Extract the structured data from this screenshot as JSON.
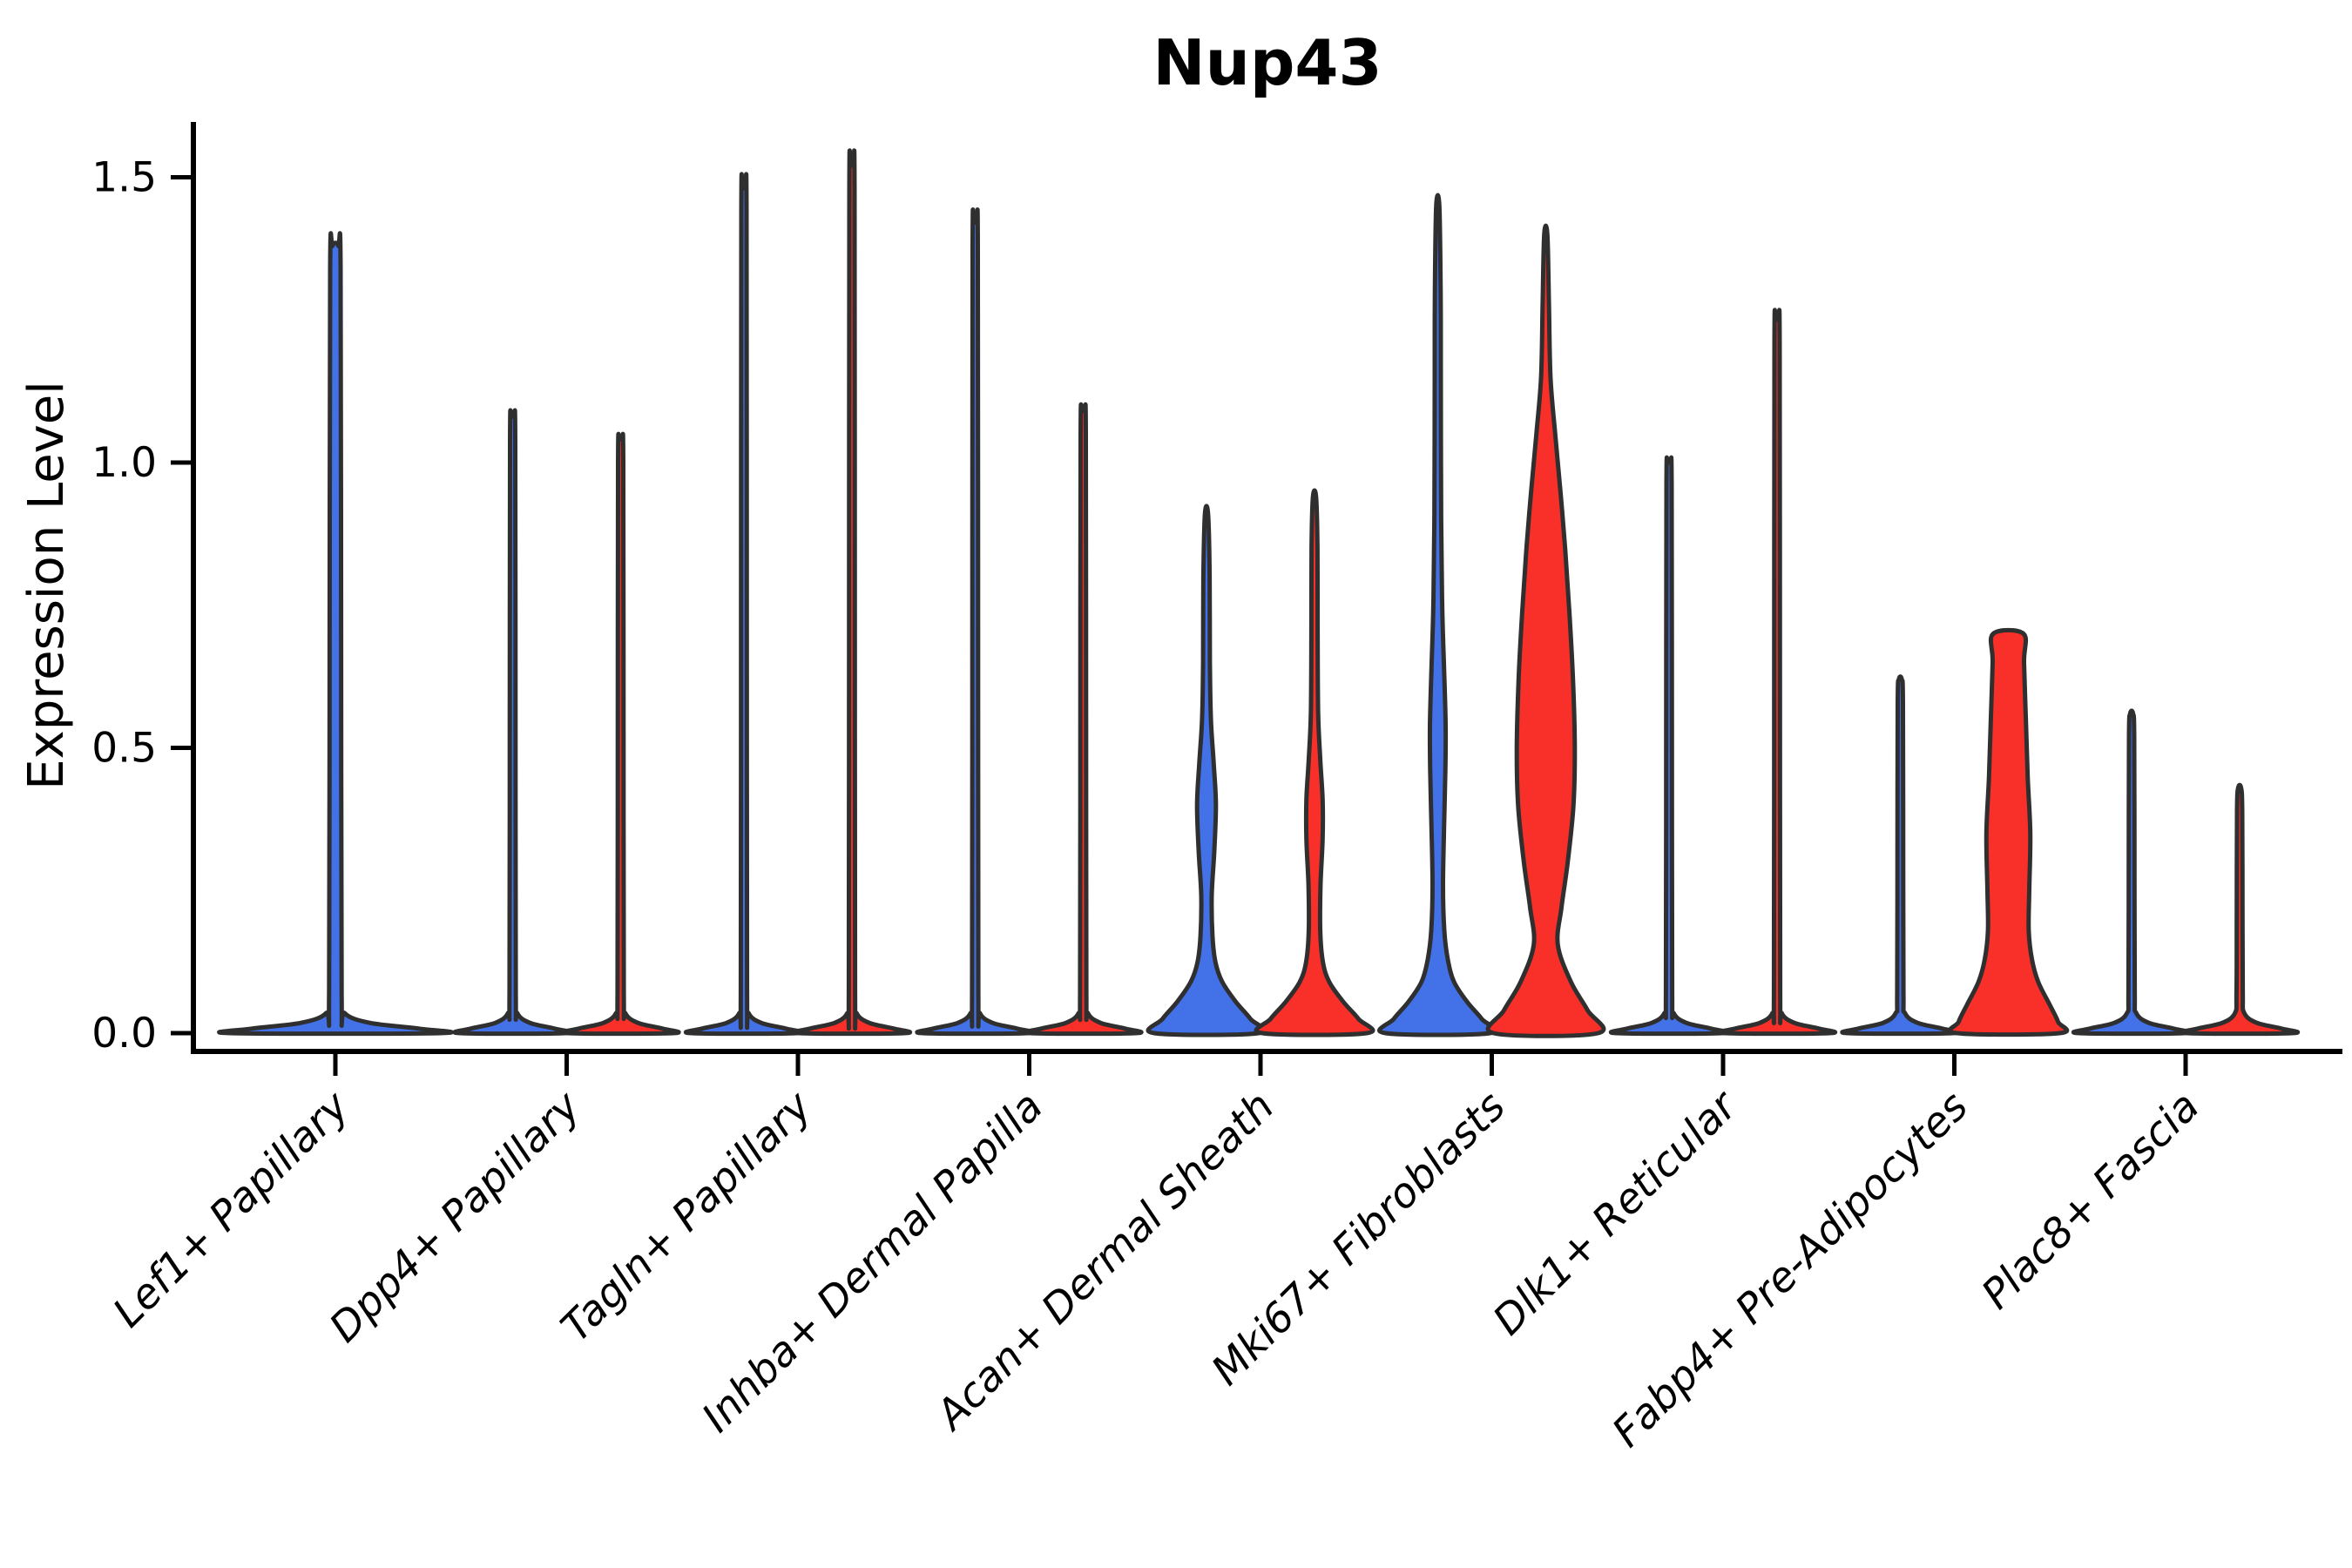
{
  "chart_data": {
    "type": "violin",
    "title": "Nup43",
    "ylabel": "Expression Level",
    "legend": "none",
    "ylim": [
      0,
      1.6
    ],
    "yticks": [
      {
        "label": "0.0",
        "value": 0.0
      },
      {
        "label": "0.5",
        "value": 0.5
      },
      {
        "label": "1.0",
        "value": 1.0
      },
      {
        "label": "1.5",
        "value": 1.5
      }
    ],
    "colors": {
      "blue": "#4372e8",
      "red": "#f93029",
      "outline": "#2f2f2f",
      "axis": "#000000"
    },
    "categories": [
      {
        "label": "Lef1+ Papillary",
        "violins": [
          {
            "side": "center",
            "color": "blue",
            "shape": "spike",
            "max": 1.38
          }
        ]
      },
      {
        "label": "Dpp4+ Papillary",
        "violins": [
          {
            "side": "left",
            "color": "blue",
            "shape": "spike",
            "max": 1.08
          },
          {
            "side": "right",
            "color": "red",
            "shape": "spike",
            "max": 1.04
          }
        ]
      },
      {
        "label": "Tagln+ Papillary",
        "violins": [
          {
            "side": "left",
            "color": "blue",
            "shape": "spike",
            "max": 1.48
          },
          {
            "side": "right",
            "color": "red",
            "shape": "spike",
            "max": 1.52
          }
        ]
      },
      {
        "label": "Inhba+ Dermal Papilla",
        "violins": [
          {
            "side": "left",
            "color": "blue",
            "shape": "spike",
            "max": 1.42
          },
          {
            "side": "right",
            "color": "red",
            "shape": "spike",
            "max": 1.09
          }
        ]
      },
      {
        "label": "Acan+ Dermal Sheath",
        "violins": [
          {
            "side": "left",
            "color": "blue",
            "shape": "custom",
            "max": 0.91,
            "profile": [
              [
                0,
                1
              ],
              [
                0.025,
                0.84
              ],
              [
                0.055,
                0.56
              ],
              [
                0.09,
                0.3
              ],
              [
                0.125,
                0.17
              ],
              [
                0.17,
                0.115
              ],
              [
                0.24,
                0.1
              ],
              [
                0.32,
                0.15
              ],
              [
                0.4,
                0.18
              ],
              [
                0.47,
                0.14
              ],
              [
                0.55,
                0.085
              ],
              [
                0.65,
                0.065
              ],
              [
                0.8,
                0.06
              ],
              [
                0.91,
                0.03
              ]
            ]
          },
          {
            "side": "right",
            "color": "red",
            "shape": "custom",
            "max": 0.94,
            "profile": [
              [
                0,
                1
              ],
              [
                0.025,
                0.84
              ],
              [
                0.055,
                0.55
              ],
              [
                0.09,
                0.28
              ],
              [
                0.125,
                0.16
              ],
              [
                0.18,
                0.11
              ],
              [
                0.26,
                0.115
              ],
              [
                0.34,
                0.155
              ],
              [
                0.41,
                0.155
              ],
              [
                0.48,
                0.11
              ],
              [
                0.56,
                0.07
              ],
              [
                0.7,
                0.06
              ],
              [
                0.85,
                0.057
              ],
              [
                0.94,
                0.03
              ]
            ]
          }
        ]
      },
      {
        "label": "Mki67+ Fibroblasts",
        "violins": [
          {
            "side": "left",
            "color": "blue",
            "shape": "custom",
            "max": 1.45,
            "profile": [
              [
                0,
                1
              ],
              [
                0.025,
                0.84
              ],
              [
                0.055,
                0.56
              ],
              [
                0.09,
                0.31
              ],
              [
                0.13,
                0.19
              ],
              [
                0.18,
                0.125
              ],
              [
                0.26,
                0.1
              ],
              [
                0.36,
                0.12
              ],
              [
                0.46,
                0.145
              ],
              [
                0.54,
                0.15
              ],
              [
                0.64,
                0.12
              ],
              [
                0.75,
                0.085
              ],
              [
                0.9,
                0.065
              ],
              [
                1.15,
                0.058
              ],
              [
                1.3,
                0.055
              ],
              [
                1.45,
                0.03
              ]
            ]
          },
          {
            "side": "right",
            "color": "red",
            "shape": "custom",
            "max": 1.4,
            "profile": [
              [
                0,
                1
              ],
              [
                0.04,
                0.8
              ],
              [
                0.09,
                0.48
              ],
              [
                0.155,
                0.23
              ],
              [
                0.22,
                0.3
              ],
              [
                0.3,
                0.42
              ],
              [
                0.4,
                0.53
              ],
              [
                0.5,
                0.555
              ],
              [
                0.62,
                0.52
              ],
              [
                0.74,
                0.45
              ],
              [
                0.85,
                0.37
              ],
              [
                0.95,
                0.28
              ],
              [
                1.05,
                0.18
              ],
              [
                1.15,
                0.09
              ],
              [
                1.28,
                0.06
              ],
              [
                1.4,
                0.03
              ]
            ]
          }
        ]
      },
      {
        "label": "Dlk1+ Reticular",
        "violins": [
          {
            "side": "left",
            "color": "blue",
            "shape": "spike",
            "max": 1.0
          },
          {
            "side": "right",
            "color": "red",
            "shape": "spike",
            "max": 1.25
          }
        ]
      },
      {
        "label": "Fabp4+ Pre-Adipocytes",
        "violins": [
          {
            "side": "left",
            "color": "blue",
            "shape": "spike",
            "max": 0.62
          },
          {
            "side": "right",
            "color": "red",
            "shape": "custom",
            "max": 0.7,
            "flat_top": true,
            "profile": [
              [
                0,
                0.98
              ],
              [
                0.02,
                0.95
              ],
              [
                0.05,
                0.79
              ],
              [
                0.09,
                0.57
              ],
              [
                0.13,
                0.45
              ],
              [
                0.18,
                0.39
              ],
              [
                0.25,
                0.4
              ],
              [
                0.35,
                0.42
              ],
              [
                0.45,
                0.37
              ],
              [
                0.55,
                0.335
              ],
              [
                0.65,
                0.3
              ],
              [
                0.7,
                0.29
              ]
            ]
          }
        ]
      },
      {
        "label": "Plac8+ Fascia",
        "violins": [
          {
            "side": "left",
            "color": "blue",
            "shape": "spike",
            "max": 0.56
          },
          {
            "side": "right",
            "color": "red",
            "shape": "spike",
            "max": 0.43
          }
        ]
      }
    ]
  }
}
